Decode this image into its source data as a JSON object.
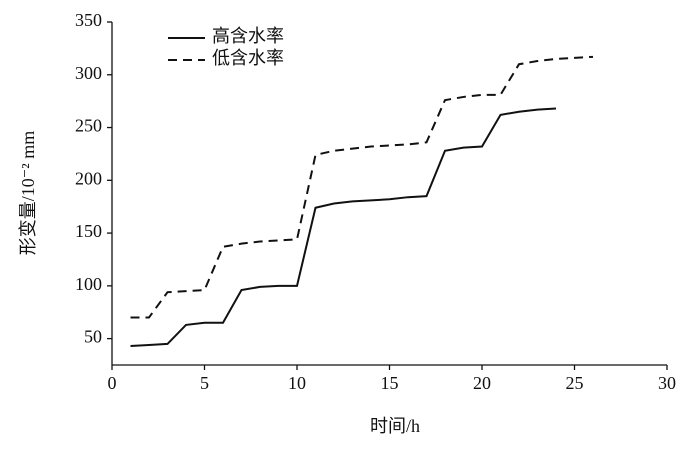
{
  "chart_data": {
    "type": "line",
    "xlabel": "时间/h",
    "ylabel": "形变量/10⁻² mm",
    "xlim": [
      0,
      30
    ],
    "xticks": [
      0,
      5,
      10,
      15,
      20,
      25,
      30
    ],
    "ylim": [
      25,
      350
    ],
    "yticks": [
      50,
      100,
      150,
      200,
      250,
      300,
      350
    ],
    "legend": "upper left",
    "series": [
      {
        "name": "高含水率",
        "color": "#111111",
        "dash": "solid",
        "x": [
          1,
          2,
          3,
          4,
          5,
          6,
          7,
          8,
          9,
          10,
          11,
          12,
          13,
          14,
          15,
          16,
          17,
          18,
          19,
          20,
          21,
          22,
          23,
          24
        ],
        "values": [
          43,
          44,
          45,
          63,
          65,
          65,
          96,
          99,
          100,
          100,
          174,
          178,
          180,
          181,
          182,
          184,
          185,
          228,
          231,
          232,
          262,
          265,
          267,
          268
        ]
      },
      {
        "name": "低含水率",
        "color": "#111111",
        "dash": "dashed",
        "x": [
          1,
          2,
          3,
          4,
          5,
          6,
          7,
          8,
          9,
          10,
          11,
          12,
          13,
          14,
          15,
          16,
          17,
          18,
          19,
          20,
          21,
          22,
          23,
          24,
          25,
          26
        ],
        "values": [
          70,
          70,
          94,
          95,
          96,
          137,
          140,
          142,
          143,
          144,
          224,
          228,
          230,
          232,
          233,
          234,
          236,
          276,
          279,
          281,
          281,
          310,
          313,
          315,
          316,
          317
        ]
      }
    ]
  }
}
